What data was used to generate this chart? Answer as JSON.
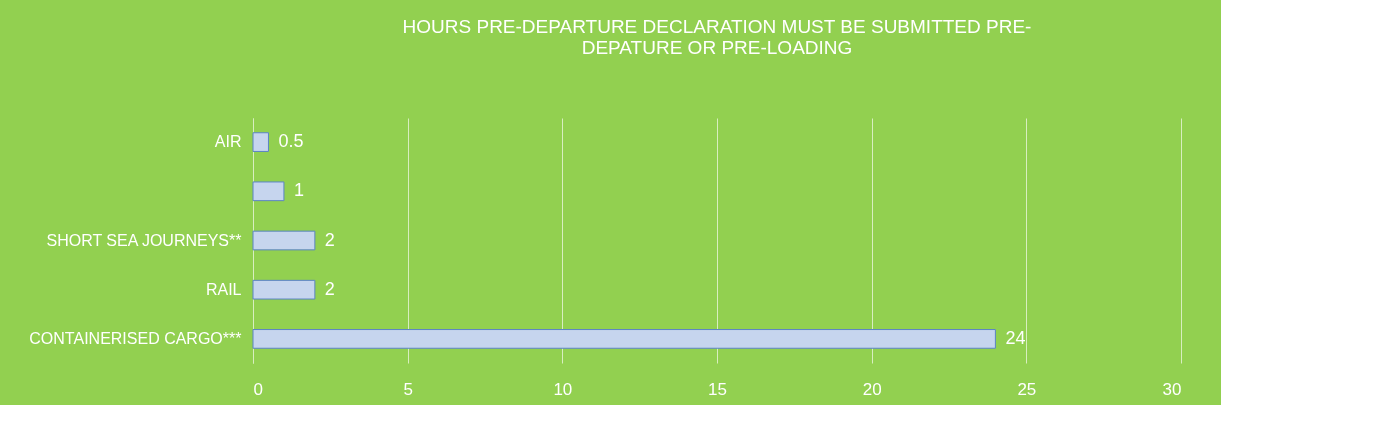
{
  "chart_data": {
    "type": "bar",
    "orientation": "horizontal",
    "title": "HOURS PRE-DEPARTURE DECLARATION MUST BE SUBMITTED PRE-DEPATURE OR PRE-LOADING",
    "categories": [
      "AIR",
      null,
      "SHORT SEA JOURNEYS**",
      "RAIL",
      "CONTAINERISED CARGO***"
    ],
    "values": [
      0.5,
      1,
      2,
      2,
      24
    ],
    "color": "#c6d5ee",
    "xlim": [
      0,
      30
    ],
    "xticks": [
      0,
      5,
      10,
      15,
      20,
      25,
      30
    ],
    "grid": "x",
    "data_labels": true
  }
}
